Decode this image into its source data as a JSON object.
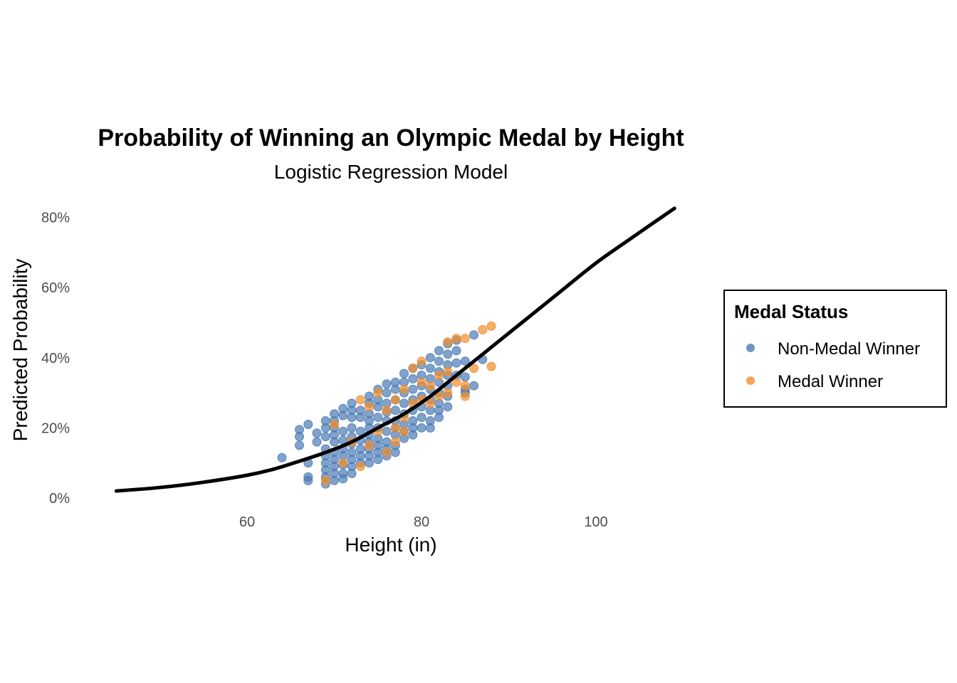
{
  "chart_data": {
    "type": "scatter",
    "title": "Probability of Winning an Olympic Medal by Height",
    "subtitle": "Logistic Regression Model",
    "xlabel": "Height (in)",
    "ylabel": "Predicted Probability",
    "xlim": [
      44,
      109
    ],
    "ylim": [
      0,
      0.84
    ],
    "x_ticks": [
      60,
      80,
      100
    ],
    "x_tick_labels": [
      "60",
      "80",
      "100"
    ],
    "y_ticks": [
      0,
      0.2,
      0.4,
      0.6,
      0.8
    ],
    "y_tick_labels": [
      "0%",
      "20%",
      "40%",
      "60%",
      "80%"
    ],
    "grid": false,
    "legend": {
      "title": "Medal Status",
      "placement": "right",
      "entries": [
        "Non-Medal Winner",
        "Medal Winner"
      ]
    },
    "curve": {
      "name": "fitted logistic curve",
      "color": "#000000",
      "x": [
        45,
        50,
        55,
        60,
        63,
        66,
        69,
        72,
        75,
        78,
        81,
        84,
        87,
        90,
        93,
        96,
        100,
        104,
        109
      ],
      "y": [
        0.02,
        0.03,
        0.045,
        0.065,
        0.082,
        0.105,
        0.13,
        0.16,
        0.2,
        0.24,
        0.29,
        0.35,
        0.41,
        0.47,
        0.53,
        0.59,
        0.67,
        0.74,
        0.826
      ]
    },
    "series": [
      {
        "name": "Non-Medal Winner",
        "color": "#4a7ab5",
        "points": [
          [
            64,
            0.115
          ],
          [
            66,
            0.195
          ],
          [
            66,
            0.175
          ],
          [
            66,
            0.15
          ],
          [
            67,
            0.21
          ],
          [
            67,
            0.1
          ],
          [
            67,
            0.06
          ],
          [
            67,
            0.05
          ],
          [
            68,
            0.185
          ],
          [
            68,
            0.16
          ],
          [
            69,
            0.22
          ],
          [
            69,
            0.2
          ],
          [
            69,
            0.175
          ],
          [
            69,
            0.14
          ],
          [
            69,
            0.12
          ],
          [
            69,
            0.1
          ],
          [
            69,
            0.08
          ],
          [
            69,
            0.06
          ],
          [
            69,
            0.04
          ],
          [
            70,
            0.24
          ],
          [
            70,
            0.22
          ],
          [
            70,
            0.2
          ],
          [
            70,
            0.18
          ],
          [
            70,
            0.16
          ],
          [
            70,
            0.13
          ],
          [
            70,
            0.11
          ],
          [
            70,
            0.09
          ],
          [
            70,
            0.07
          ],
          [
            70,
            0.05
          ],
          [
            71,
            0.255
          ],
          [
            71,
            0.235
          ],
          [
            71,
            0.19
          ],
          [
            71,
            0.165
          ],
          [
            71,
            0.14
          ],
          [
            71,
            0.12
          ],
          [
            71,
            0.095
          ],
          [
            71,
            0.07
          ],
          [
            71,
            0.055
          ],
          [
            72,
            0.27
          ],
          [
            72,
            0.25
          ],
          [
            72,
            0.23
          ],
          [
            72,
            0.2
          ],
          [
            72,
            0.175
          ],
          [
            72,
            0.155
          ],
          [
            72,
            0.13
          ],
          [
            72,
            0.11
          ],
          [
            72,
            0.09
          ],
          [
            72,
            0.07
          ],
          [
            73,
            0.25
          ],
          [
            73,
            0.23
          ],
          [
            73,
            0.19
          ],
          [
            73,
            0.165
          ],
          [
            73,
            0.14
          ],
          [
            73,
            0.12
          ],
          [
            73,
            0.1
          ],
          [
            74,
            0.29
          ],
          [
            74,
            0.27
          ],
          [
            74,
            0.24
          ],
          [
            74,
            0.22
          ],
          [
            74,
            0.2
          ],
          [
            74,
            0.18
          ],
          [
            74,
            0.16
          ],
          [
            74,
            0.14
          ],
          [
            74,
            0.12
          ],
          [
            74,
            0.1
          ],
          [
            75,
            0.31
          ],
          [
            75,
            0.28
          ],
          [
            75,
            0.26
          ],
          [
            75,
            0.23
          ],
          [
            75,
            0.2
          ],
          [
            75,
            0.17
          ],
          [
            75,
            0.15
          ],
          [
            75,
            0.13
          ],
          [
            75,
            0.11
          ],
          [
            76,
            0.325
          ],
          [
            76,
            0.3
          ],
          [
            76,
            0.27
          ],
          [
            76,
            0.245
          ],
          [
            76,
            0.22
          ],
          [
            76,
            0.19
          ],
          [
            76,
            0.16
          ],
          [
            76,
            0.14
          ],
          [
            76,
            0.12
          ],
          [
            77,
            0.33
          ],
          [
            77,
            0.31
          ],
          [
            77,
            0.28
          ],
          [
            77,
            0.25
          ],
          [
            77,
            0.22
          ],
          [
            77,
            0.2
          ],
          [
            77,
            0.18
          ],
          [
            77,
            0.15
          ],
          [
            77,
            0.13
          ],
          [
            78,
            0.355
          ],
          [
            78,
            0.33
          ],
          [
            78,
            0.3
          ],
          [
            78,
            0.27
          ],
          [
            78,
            0.24
          ],
          [
            78,
            0.21
          ],
          [
            78,
            0.19
          ],
          [
            78,
            0.17
          ],
          [
            79,
            0.37
          ],
          [
            79,
            0.34
          ],
          [
            79,
            0.31
          ],
          [
            79,
            0.28
          ],
          [
            79,
            0.25
          ],
          [
            79,
            0.22
          ],
          [
            79,
            0.2
          ],
          [
            79,
            0.18
          ],
          [
            80,
            0.38
          ],
          [
            80,
            0.35
          ],
          [
            80,
            0.32
          ],
          [
            80,
            0.29
          ],
          [
            80,
            0.26
          ],
          [
            80,
            0.23
          ],
          [
            80,
            0.2
          ],
          [
            81,
            0.4
          ],
          [
            81,
            0.37
          ],
          [
            81,
            0.34
          ],
          [
            81,
            0.31
          ],
          [
            81,
            0.28
          ],
          [
            81,
            0.25
          ],
          [
            81,
            0.22
          ],
          [
            81,
            0.2
          ],
          [
            82,
            0.42
          ],
          [
            82,
            0.39
          ],
          [
            82,
            0.36
          ],
          [
            82,
            0.33
          ],
          [
            82,
            0.3
          ],
          [
            82,
            0.27
          ],
          [
            82,
            0.25
          ],
          [
            82,
            0.23
          ],
          [
            83,
            0.44
          ],
          [
            83,
            0.41
          ],
          [
            83,
            0.38
          ],
          [
            83,
            0.35
          ],
          [
            83,
            0.32
          ],
          [
            83,
            0.29
          ],
          [
            83,
            0.26
          ],
          [
            84,
            0.45
          ],
          [
            84,
            0.42
          ],
          [
            84,
            0.385
          ],
          [
            84,
            0.35
          ],
          [
            85,
            0.39
          ],
          [
            85,
            0.345
          ],
          [
            85,
            0.31
          ],
          [
            85,
            0.3
          ],
          [
            86,
            0.465
          ],
          [
            86,
            0.32
          ],
          [
            87,
            0.395
          ]
        ]
      },
      {
        "name": "Medal Winner",
        "color": "#f28e2b",
        "points": [
          [
            69,
            0.05
          ],
          [
            70,
            0.21
          ],
          [
            71,
            0.1
          ],
          [
            72,
            0.16
          ],
          [
            73,
            0.28
          ],
          [
            73,
            0.09
          ],
          [
            74,
            0.26
          ],
          [
            74,
            0.15
          ],
          [
            75,
            0.3
          ],
          [
            75,
            0.19
          ],
          [
            76,
            0.25
          ],
          [
            76,
            0.13
          ],
          [
            77,
            0.28
          ],
          [
            77,
            0.2
          ],
          [
            77,
            0.16
          ],
          [
            78,
            0.31
          ],
          [
            78,
            0.23
          ],
          [
            78,
            0.19
          ],
          [
            79,
            0.37
          ],
          [
            79,
            0.27
          ],
          [
            80,
            0.39
          ],
          [
            80,
            0.33
          ],
          [
            80,
            0.28
          ],
          [
            81,
            0.32
          ],
          [
            81,
            0.27
          ],
          [
            82,
            0.35
          ],
          [
            82,
            0.29
          ],
          [
            83,
            0.445
          ],
          [
            83,
            0.36
          ],
          [
            83,
            0.3
          ],
          [
            84,
            0.455
          ],
          [
            84,
            0.33
          ],
          [
            85,
            0.455
          ],
          [
            85,
            0.32
          ],
          [
            85,
            0.29
          ],
          [
            86,
            0.37
          ],
          [
            87,
            0.48
          ],
          [
            88,
            0.49
          ],
          [
            88,
            0.375
          ]
        ]
      }
    ]
  }
}
